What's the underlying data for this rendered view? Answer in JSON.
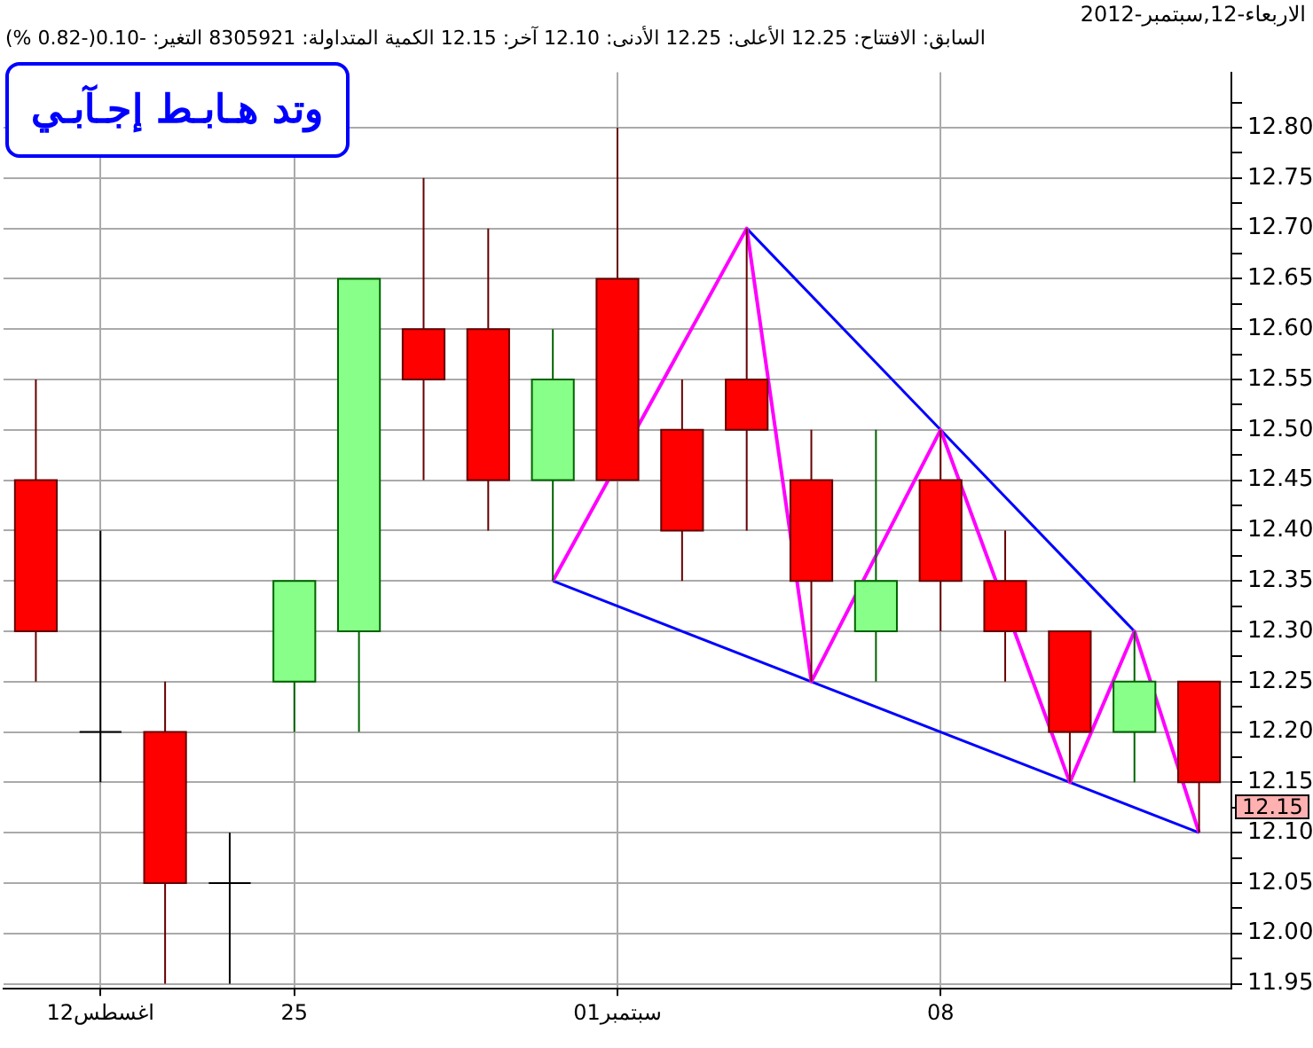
{
  "chart_data": {
    "type": "candlestick",
    "title": "الاربعاء-12,سبتمبر-2012",
    "subtitle": "السابق: الافتتاح: 12.25 الأعلى: 12.25 الأدنى: 12.10 آخر: 12.15 الكمية المتداولة: 8305921 التغير: -0.10(-0.82 %)",
    "categories": [
      null,
      "12اغسطس",
      null,
      null,
      "25",
      null,
      null,
      null,
      null,
      "01سبتمبر",
      null,
      null,
      null,
      null,
      "08",
      null,
      null,
      null,
      null
    ],
    "ohlc": [
      [
        12.45,
        12.55,
        12.25,
        12.3
      ],
      [
        12.2,
        12.4,
        12.15,
        12.2
      ],
      [
        12.2,
        12.25,
        11.95,
        12.05
      ],
      [
        12.05,
        12.1,
        11.95,
        12.05
      ],
      [
        12.25,
        12.35,
        12.2,
        12.35
      ],
      [
        12.3,
        12.65,
        12.2,
        12.65
      ],
      [
        12.6,
        12.75,
        12.45,
        12.55
      ],
      [
        12.6,
        12.7,
        12.4,
        12.45
      ],
      [
        12.45,
        12.6,
        12.35,
        12.55
      ],
      [
        12.65,
        12.8,
        12.45,
        12.45
      ],
      [
        12.5,
        12.55,
        12.35,
        12.4
      ],
      [
        12.55,
        12.7,
        12.4,
        12.5
      ],
      [
        12.45,
        12.5,
        12.25,
        12.35
      ],
      [
        12.3,
        12.5,
        12.25,
        12.35
      ],
      [
        12.45,
        12.5,
        12.3,
        12.35
      ],
      [
        12.35,
        12.4,
        12.25,
        12.3
      ],
      [
        12.3,
        12.3,
        12.15,
        12.2
      ],
      [
        12.2,
        12.3,
        12.15,
        12.25
      ],
      [
        12.25,
        12.25,
        12.1,
        12.15
      ]
    ],
    "colors": [
      "#ff0000",
      "#000000",
      "#ff0000",
      "#000000",
      "#88ff88",
      "#88ff88",
      "#ff0000",
      "#ff0000",
      "#88ff88",
      "#ff0000",
      "#ff0000",
      "#ff0000",
      "#ff0000",
      "#88ff88",
      "#ff0000",
      "#ff0000",
      "#ff0000",
      "#88ff88",
      "#ff0000"
    ],
    "series": [
      {
        "type": "line",
        "color": "#ff00ff",
        "values": [
          null,
          null,
          null,
          null,
          null,
          null,
          null,
          null,
          12.35,
          null,
          null,
          12.7,
          12.25,
          null,
          12.5,
          null,
          12.15,
          12.3,
          12.1
        ]
      },
      {
        "type": "line",
        "color": "#0000ff",
        "values": [
          null,
          null,
          null,
          null,
          null,
          null,
          null,
          null,
          null,
          null,
          null,
          12.7,
          null,
          null,
          12.5,
          null,
          null,
          12.3,
          null
        ]
      },
      {
        "type": "line",
        "color": "#0000ff",
        "values": [
          null,
          null,
          null,
          null,
          null,
          null,
          null,
          null,
          12.35,
          null,
          null,
          null,
          12.25,
          null,
          null,
          null,
          12.15,
          null,
          12.1
        ]
      }
    ],
    "ylim": [
      11.945,
      12.855
    ],
    "yticks": [
      {
        "value": 11.95,
        "label": "11.95"
      },
      {
        "value": 11.975,
        "label": null
      },
      {
        "value": 12.0,
        "label": "12.00"
      },
      {
        "value": 12.025,
        "label": null
      },
      {
        "value": 12.05,
        "label": "12.05"
      },
      {
        "value": 12.075,
        "label": null
      },
      {
        "value": 12.1,
        "label": "12.10"
      },
      {
        "value": 12.125,
        "label": null
      },
      {
        "value": 12.15,
        "label": "12.15"
      },
      {
        "value": 12.175,
        "label": null
      },
      {
        "value": 12.2,
        "label": "12.20"
      },
      {
        "value": 12.225,
        "label": null
      },
      {
        "value": 12.25,
        "label": "12.25"
      },
      {
        "value": 12.275,
        "label": null
      },
      {
        "value": 12.3,
        "label": "12.30"
      },
      {
        "value": 12.325,
        "label": null
      },
      {
        "value": 12.35,
        "label": "12.35"
      },
      {
        "value": 12.375,
        "label": null
      },
      {
        "value": 12.4,
        "label": "12.40"
      },
      {
        "value": 12.425,
        "label": null
      },
      {
        "value": 12.45,
        "label": "12.45"
      },
      {
        "value": 12.475,
        "label": null
      },
      {
        "value": 12.5,
        "label": "12.50"
      },
      {
        "value": 12.525,
        "label": null
      },
      {
        "value": 12.55,
        "label": "12.55"
      },
      {
        "value": 12.575,
        "label": null
      },
      {
        "value": 12.6,
        "label": "12.60"
      },
      {
        "value": 12.625,
        "label": null
      },
      {
        "value": 12.65,
        "label": "12.65"
      },
      {
        "value": 12.675,
        "label": null
      },
      {
        "value": 12.7,
        "label": "12.70"
      },
      {
        "value": 12.725,
        "label": null
      },
      {
        "value": 12.75,
        "label": "12.75"
      },
      {
        "value": 12.775,
        "label": null
      },
      {
        "value": 12.8,
        "label": "12.80"
      },
      {
        "value": 12.825,
        "label": null
      }
    ],
    "annotations": [
      "وتد هـابـط إجـآبـي",
      "12.15"
    ],
    "grid": true,
    "legend": false,
    "marker": "none",
    "line_style": "solid"
  }
}
